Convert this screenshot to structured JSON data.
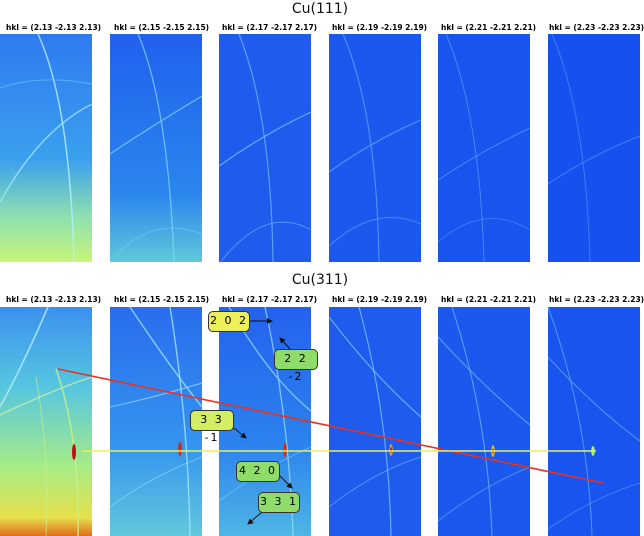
{
  "rows": [
    {
      "title": "Cu(111)",
      "hkl": [
        "hkl =  (2.13 -2.13 2.13)",
        "hkl =  (2.15 -2.15 2.15)",
        "hkl =  (2.17 -2.17 2.17)",
        "hkl =  (2.19 -2.19 2.19)",
        "hkl =  (2.21 -2.21 2.21)",
        "hkl =  (2.23 -2.23 2.23)"
      ]
    },
    {
      "title": "Cu(311)",
      "hkl": [
        "hkl =  (2.13 -2.13 2.13)",
        "hkl =  (2.15 -2.15 2.15)",
        "hkl =  (2.17 -2.17 2.17)",
        "hkl =  (2.19 -2.19 2.19)",
        "hkl =  (2.21 -2.21 2.21)",
        "hkl =  (2.23 -2.23 2.23)"
      ]
    }
  ],
  "annotations": {
    "l202": "2 0 2",
    "l22m2": "2 2 -2",
    "l33m1": "3 3 -1",
    "l420": "4 2 0",
    "l331": "3 3 1"
  },
  "colors": {
    "background_blue": "#1a5cf0",
    "arc_cyan": "#7fd8ff",
    "low_intensity_green": "#b8f07a",
    "red_line": "#e8321e",
    "yellow_line": "#e8f05a",
    "label_yellow": "#eef05a",
    "label_green": "#8fdc6a"
  }
}
